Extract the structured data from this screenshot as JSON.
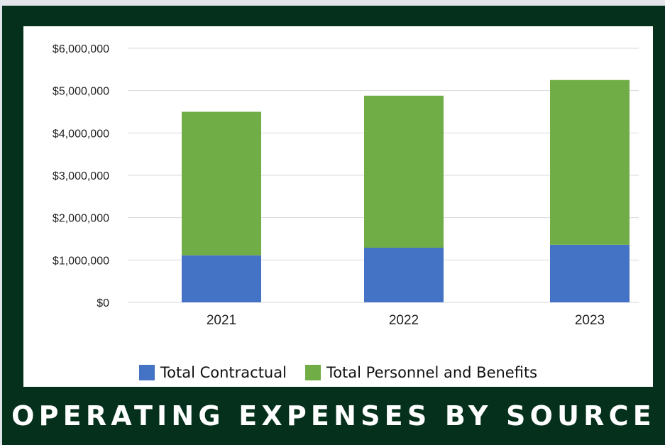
{
  "title": "OPERATING EXPENSES BY SOURCE",
  "colors": {
    "frame": "#04301c",
    "panel": "#ffffff",
    "contractual": "#4472c4",
    "personnel": "#70ad47",
    "grid": "#d9d9d9"
  },
  "legend": {
    "contractual_label": "Total Contractual",
    "personnel_label": "Total Personnel and Benefits"
  },
  "chart_data": {
    "type": "bar",
    "stacked": true,
    "title": "OPERATING EXPENSES BY SOURCE",
    "categories": [
      "2021",
      "2022",
      "2023"
    ],
    "series": [
      {
        "name": "Total Contractual",
        "color": "#4472c4",
        "values": [
          1110000,
          1290000,
          1360000
        ]
      },
      {
        "name": "Total Personnel and Benefits",
        "color": "#70ad47",
        "values": [
          3390000,
          3590000,
          3890000
        ]
      }
    ],
    "ylim": [
      0,
      6000000
    ],
    "yticks": [
      0,
      1000000,
      2000000,
      3000000,
      4000000,
      5000000,
      6000000
    ],
    "ytick_labels": [
      "$0",
      "$1,000,000",
      "$2,000,000",
      "$3,000,000",
      "$4,000,000",
      "$5,000,000",
      "$6,000,000"
    ],
    "grid": true,
    "legend_position": "bottom"
  }
}
